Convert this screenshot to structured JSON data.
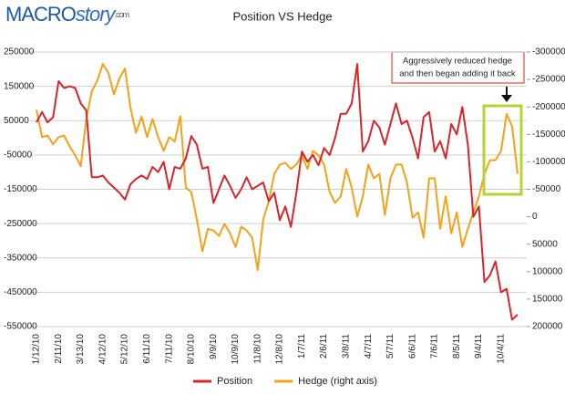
{
  "chart_data": {
    "type": "line",
    "title": "Position VS Hedge",
    "logo": {
      "main": "MACRO",
      "accent": "story",
      "suffix": ".com"
    },
    "annotation": [
      "Aggressively reduced hedge",
      "and then began adding it back"
    ],
    "categories": [
      "1/12/10",
      null,
      null,
      null,
      "2/11/10",
      null,
      null,
      null,
      "3/13/10",
      null,
      null,
      null,
      "4/12/10",
      null,
      null,
      null,
      "5/12/10",
      null,
      null,
      null,
      "6/11/10",
      null,
      null,
      null,
      "7/11/10",
      null,
      null,
      null,
      "8/10/10",
      null,
      null,
      null,
      "9/9/10",
      null,
      null,
      null,
      "10/9/10",
      null,
      null,
      null,
      "11/8/10",
      null,
      null,
      null,
      "12/8/10",
      null,
      null,
      null,
      "1/7/11",
      null,
      null,
      null,
      "2/6/11",
      null,
      null,
      null,
      "3/8/11",
      null,
      null,
      null,
      "4/7/11",
      null,
      null,
      null,
      "5/7/11",
      null,
      null,
      null,
      "6/6/11",
      null,
      null,
      null,
      "7/6/11",
      null,
      null,
      null,
      "8/5/11",
      null,
      null,
      null,
      "9/4/11",
      null,
      null,
      null,
      "10/4/11",
      null,
      null,
      null
    ],
    "series": [
      {
        "name": "Position",
        "color": "#d7262b",
        "values": [
          45000,
          75000,
          45000,
          60000,
          165000,
          145000,
          150000,
          145000,
          100000,
          80000,
          -115000,
          -115000,
          -110000,
          -130000,
          -145000,
          -160000,
          -180000,
          -135000,
          -120000,
          -110000,
          -120000,
          -85000,
          -100000,
          -70000,
          -150000,
          -85000,
          -90000,
          -60000,
          5000,
          -20000,
          -90000,
          -85000,
          -190000,
          -150000,
          -110000,
          -140000,
          -175000,
          -150000,
          -115000,
          -150000,
          -140000,
          -130000,
          -185000,
          -160000,
          -240000,
          -200000,
          -260000,
          -160000,
          -40000,
          -70000,
          -50000,
          -80000,
          -30000,
          -50000,
          0,
          70000,
          70000,
          100000,
          215000,
          -40000,
          -10000,
          50000,
          30000,
          -20000,
          40000,
          100000,
          40000,
          50000,
          0,
          -60000,
          60000,
          75000,
          -40000,
          -10000,
          -60000,
          40000,
          10000,
          90000,
          -20000,
          -230000,
          -200000,
          -420000,
          -400000,
          -360000,
          -450000,
          -440000,
          -530000,
          -515000
        ]
      },
      {
        "name": "Hedge (right axis)",
        "color": "#f5a21b",
        "axis": "y2",
        "values": [
          -195000,
          -145000,
          -148000,
          -132000,
          -145000,
          -148000,
          -128000,
          -112000,
          -92000,
          -178000,
          -228000,
          -248000,
          -278000,
          -262000,
          -223000,
          -252000,
          -270000,
          -198000,
          -153000,
          -182000,
          -145000,
          -178000,
          -145000,
          -120000,
          -145000,
          -137000,
          -183000,
          -53000,
          -45000,
          5000,
          63000,
          22000,
          25000,
          35000,
          13000,
          30000,
          55000,
          18000,
          25000,
          38000,
          97000,
          5000,
          -28000,
          -78000,
          -95000,
          -98000,
          -87000,
          -95000,
          -112000,
          -87000,
          -120000,
          -112000,
          -95000,
          -45000,
          -25000,
          -37000,
          -87000,
          -53000,
          0,
          -37000,
          -95000,
          -70000,
          -78000,
          -3000,
          -70000,
          -95000,
          -95000,
          -62000,
          2000,
          -8000,
          38000,
          -70000,
          -70000,
          22000,
          -37000,
          30000,
          -8000,
          55000,
          22000,
          -8000,
          -37000,
          -78000,
          -103000,
          -103000,
          -120000,
          -187000,
          -165000,
          -78000
        ]
      }
    ],
    "ylim": [
      -550000,
      250000
    ],
    "yticks": [
      250000,
      150000,
      50000,
      -50000,
      -150000,
      -250000,
      -350000,
      -450000,
      -550000
    ],
    "y2lim": [
      200000,
      -300000
    ],
    "y2ticks": [
      -300000,
      -250000,
      -200000,
      -150000,
      -100000,
      -50000,
      0,
      50000,
      100000,
      150000,
      200000
    ],
    "grid": true,
    "legend_position": "bottom"
  }
}
